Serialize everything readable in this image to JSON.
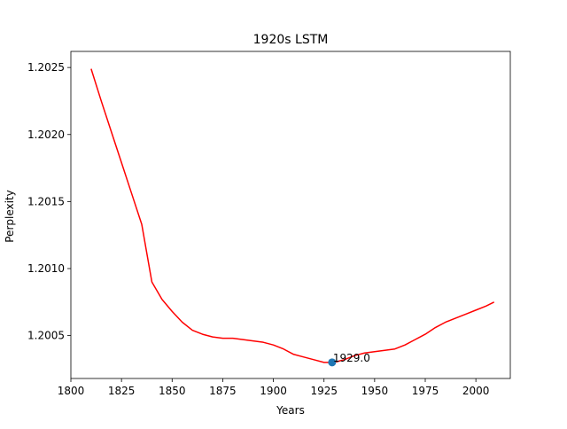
{
  "chart_data": {
    "type": "line",
    "title": "1920s LSTM",
    "xlabel": "Years",
    "ylabel": "Perplexity",
    "xlim": [
      1800,
      2017
    ],
    "ylim": [
      1.20018,
      1.20262
    ],
    "xticks": [
      1800,
      1825,
      1850,
      1875,
      1900,
      1925,
      1950,
      1975,
      2000
    ],
    "xtick_labels": [
      "1800",
      "1825",
      "1850",
      "1875",
      "1900",
      "1925",
      "1950",
      "1975",
      "2000"
    ],
    "yticks": [
      1.2005,
      1.201,
      1.2015,
      1.202,
      1.2025
    ],
    "ytick_labels": [
      "1.2005",
      "1.2010",
      "1.2015",
      "1.2020",
      "1.2025"
    ],
    "grid": false,
    "series": [
      {
        "color": "#ff0000",
        "x": [
          1810,
          1815,
          1820,
          1825,
          1830,
          1835,
          1840,
          1845,
          1850,
          1855,
          1860,
          1865,
          1870,
          1875,
          1880,
          1885,
          1890,
          1895,
          1900,
          1905,
          1910,
          1915,
          1920,
          1925,
          1930,
          1935,
          1940,
          1945,
          1950,
          1955,
          1960,
          1965,
          1970,
          1975,
          1980,
          1985,
          1990,
          1995,
          2000,
          2005,
          2009
        ],
        "y": [
          1.20249,
          1.20225,
          1.20202,
          1.20179,
          1.20156,
          1.20133,
          1.2009,
          1.20077,
          1.20068,
          1.2006,
          1.20054,
          1.20051,
          1.20049,
          1.20048,
          1.20048,
          1.20047,
          1.20046,
          1.20045,
          1.20043,
          1.2004,
          1.20036,
          1.20034,
          1.20032,
          1.2003,
          1.2003,
          1.20032,
          1.20035,
          1.20037,
          1.20038,
          1.20039,
          1.2004,
          1.20043,
          1.20047,
          1.20051,
          1.20056,
          1.2006,
          1.20063,
          1.20066,
          1.20069,
          1.20072,
          1.20075
        ]
      }
    ],
    "marker": {
      "x": 1929,
      "y": 1.2003,
      "color": "#1f77b4",
      "label": "1929.0"
    }
  }
}
